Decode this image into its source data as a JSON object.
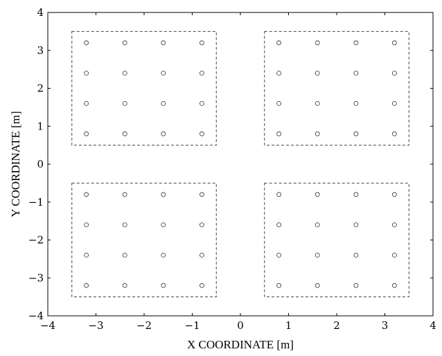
{
  "chart_data": {
    "type": "scatter",
    "xlabel": "X COORDINATE [m]",
    "ylabel": "Y COORDINATE [m]",
    "xlim": [
      -4,
      4
    ],
    "ylim": [
      -4,
      4
    ],
    "xticks": [
      -4,
      -3,
      -2,
      -1,
      0,
      1,
      2,
      3,
      4
    ],
    "yticks": [
      -4,
      -3,
      -2,
      -1,
      0,
      1,
      2,
      3,
      4
    ],
    "xtick_labels": [
      "−4",
      "−3",
      "−2",
      "−1",
      "0",
      "1",
      "2",
      "3",
      "4"
    ],
    "ytick_labels": [
      "−4",
      "−3",
      "−2",
      "−1",
      "0",
      "1",
      "2",
      "3",
      "4"
    ],
    "grid": false,
    "marker": "open-circle",
    "regions": [
      {
        "x": [
          -3.5,
          -0.5
        ],
        "y": [
          0.5,
          3.5
        ],
        "style": "dashed"
      },
      {
        "x": [
          0.5,
          3.5
        ],
        "y": [
          0.5,
          3.5
        ],
        "style": "dashed"
      },
      {
        "x": [
          -3.5,
          -0.5
        ],
        "y": [
          -3.5,
          -0.5
        ],
        "style": "dashed"
      },
      {
        "x": [
          0.5,
          3.5
        ],
        "y": [
          -3.5,
          -0.5
        ],
        "style": "dashed"
      }
    ],
    "points": [
      [
        -3.2,
        3.2
      ],
      [
        -2.4,
        3.2
      ],
      [
        -1.6,
        3.2
      ],
      [
        -0.8,
        3.2
      ],
      [
        -3.2,
        2.4
      ],
      [
        -2.4,
        2.4
      ],
      [
        -1.6,
        2.4
      ],
      [
        -0.8,
        2.4
      ],
      [
        -3.2,
        1.6
      ],
      [
        -2.4,
        1.6
      ],
      [
        -1.6,
        1.6
      ],
      [
        -0.8,
        1.6
      ],
      [
        -3.2,
        0.8
      ],
      [
        -2.4,
        0.8
      ],
      [
        -1.6,
        0.8
      ],
      [
        -0.8,
        0.8
      ],
      [
        0.8,
        3.2
      ],
      [
        1.6,
        3.2
      ],
      [
        2.4,
        3.2
      ],
      [
        3.2,
        3.2
      ],
      [
        0.8,
        2.4
      ],
      [
        1.6,
        2.4
      ],
      [
        2.4,
        2.4
      ],
      [
        3.2,
        2.4
      ],
      [
        0.8,
        1.6
      ],
      [
        1.6,
        1.6
      ],
      [
        2.4,
        1.6
      ],
      [
        3.2,
        1.6
      ],
      [
        0.8,
        0.8
      ],
      [
        1.6,
        0.8
      ],
      [
        2.4,
        0.8
      ],
      [
        3.2,
        0.8
      ],
      [
        -3.2,
        -0.8
      ],
      [
        -2.4,
        -0.8
      ],
      [
        -1.6,
        -0.8
      ],
      [
        -0.8,
        -0.8
      ],
      [
        -3.2,
        -1.6
      ],
      [
        -2.4,
        -1.6
      ],
      [
        -1.6,
        -1.6
      ],
      [
        -0.8,
        -1.6
      ],
      [
        -3.2,
        -2.4
      ],
      [
        -2.4,
        -2.4
      ],
      [
        -1.6,
        -2.4
      ],
      [
        -0.8,
        -2.4
      ],
      [
        -3.2,
        -3.2
      ],
      [
        -2.4,
        -3.2
      ],
      [
        -1.6,
        -3.2
      ],
      [
        -0.8,
        -3.2
      ],
      [
        0.8,
        -0.8
      ],
      [
        1.6,
        -0.8
      ],
      [
        2.4,
        -0.8
      ],
      [
        3.2,
        -0.8
      ],
      [
        0.8,
        -1.6
      ],
      [
        1.6,
        -1.6
      ],
      [
        2.4,
        -1.6
      ],
      [
        3.2,
        -1.6
      ],
      [
        0.8,
        -2.4
      ],
      [
        1.6,
        -2.4
      ],
      [
        2.4,
        -2.4
      ],
      [
        3.2,
        -2.4
      ],
      [
        0.8,
        -3.2
      ],
      [
        1.6,
        -3.2
      ],
      [
        2.4,
        -3.2
      ],
      [
        3.2,
        -3.2
      ]
    ]
  }
}
